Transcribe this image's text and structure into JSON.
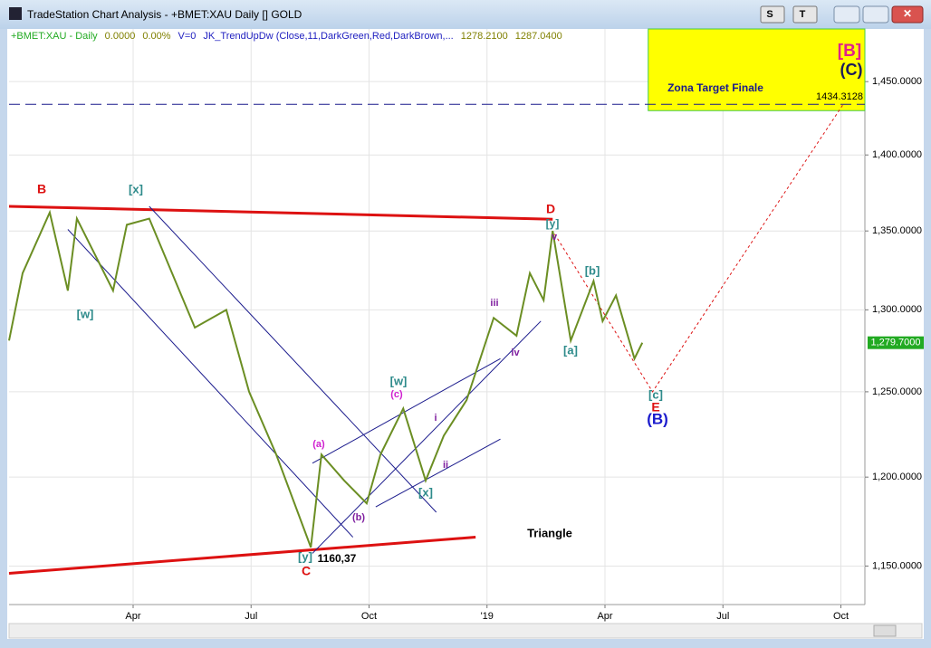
{
  "window_title": "TradeStation Chart Analysis - +BMET:XAU Daily [] GOLD",
  "chart_data": {
    "type": "line",
    "legend_parts": [
      {
        "text": "+BMET:XAU - Daily",
        "color": "#22aa22"
      },
      {
        "text": "0.0000",
        "color": "#808000"
      },
      {
        "text": "0.00%",
        "color": "#808000"
      },
      {
        "text": "V=0",
        "color": "#2020c0"
      },
      {
        "text": "JK_TrendUpDw (Close,11,DarkGreen,Red,DarkBrown,...",
        "color": "#2020c0"
      },
      {
        "text": "1278.2100",
        "color": "#808000"
      },
      {
        "text": "1287.0400",
        "color": "#808000"
      }
    ],
    "log_scale": true,
    "grid": true,
    "xlim": [
      0.845,
      22.61
    ],
    "ylim": [
      1129,
      1487
    ],
    "xticks": [
      {
        "value": 4,
        "label": "Apr"
      },
      {
        "value": 7,
        "label": "Jul"
      },
      {
        "value": 10,
        "label": "Oct"
      },
      {
        "value": 13,
        "label": "'19"
      },
      {
        "value": 16,
        "label": "Apr"
      },
      {
        "value": 19,
        "label": "Jul"
      },
      {
        "value": 22,
        "label": "Oct"
      }
    ],
    "yticks": [
      {
        "value": 1150,
        "label": "1,150.0000"
      },
      {
        "value": 1200,
        "label": "1,200.0000"
      },
      {
        "value": 1250,
        "label": "1,250.0000"
      },
      {
        "value": 1300,
        "label": "1,300.0000"
      },
      {
        "value": 1350,
        "label": "1,350.0000"
      },
      {
        "value": 1400,
        "label": "1,400.0000"
      },
      {
        "value": 1450,
        "label": "1,450.0000"
      }
    ],
    "series": [
      {
        "color": "#6b8e23",
        "x": [
          0.845,
          1.19,
          1.88,
          2.34,
          2.57,
          3.49,
          3.84,
          4.41,
          5.57,
          6.37,
          6.95,
          7.64,
          8.52,
          8.79,
          9.37,
          9.94,
          10.29,
          10.87,
          11.44,
          11.9,
          12.48,
          13.17,
          13.75,
          14.09,
          14.44,
          14.67,
          15.13,
          15.71,
          15.94,
          16.28,
          16.75,
          16.95
        ],
        "values": [
          1281,
          1323,
          1362,
          1312,
          1358,
          1312,
          1354,
          1358,
          1289,
          1300,
          1250,
          1213,
          1160.37,
          1213,
          1198,
          1185,
          1213,
          1240,
          1198,
          1224,
          1245,
          1295,
          1284,
          1323,
          1306,
          1350,
          1281,
          1318,
          1293,
          1309,
          1270,
          1279.7
        ]
      }
    ],
    "last_price": {
      "value": 1279.7,
      "label": "1,279.7000"
    },
    "trendlines": [
      {
        "color": "#dd1111",
        "style": "solid",
        "x": [
          0.845,
          14.67
        ],
        "values": [
          1366,
          1357.6
        ]
      },
      {
        "color": "#dd1111",
        "style": "solid",
        "x": [
          0.845,
          12.71
        ],
        "values": [
          1146,
          1166
        ]
      },
      {
        "color": "#1a1a8c",
        "style": "solid",
        "x": [
          2.34,
          9.59
        ],
        "values": [
          1351,
          1166
        ]
      },
      {
        "color": "#1a1a8c",
        "style": "solid",
        "x": [
          4.41,
          11.71
        ],
        "values": [
          1366,
          1180
        ]
      },
      {
        "color": "#1a1a8c",
        "style": "solid",
        "x": [
          8.56,
          14.37
        ],
        "values": [
          1157,
          1293
        ]
      },
      {
        "color": "#1a1a8c",
        "style": "solid",
        "x": [
          8.56,
          13.34
        ],
        "values": [
          1208,
          1270
        ]
      },
      {
        "color": "#1a1a8c",
        "style": "solid",
        "x": [
          10.17,
          13.34
        ],
        "values": [
          1183,
          1222
        ]
      },
      {
        "color": "#dd1111",
        "style": "dotted",
        "x": [
          14.72,
          17.21,
          22.05
        ],
        "values": [
          1348,
          1250,
          1434
        ]
      }
    ],
    "target": {
      "label": "Zona Target Finale",
      "level": 1434.3128,
      "level_label": "1434.3128",
      "x": [
        17.1,
        22.61
      ],
      "values": [
        1430,
        1487
      ]
    },
    "annotations": [
      {
        "text": "B",
        "color": "#dd1111"
      },
      {
        "text": "[x]",
        "color": "#2e8b8b"
      },
      {
        "text": "[w]",
        "color": "#2e8b8b"
      },
      {
        "text": "C",
        "color": "#dd1111"
      },
      {
        "text": "[y]",
        "color": "#2e8b8b"
      },
      {
        "text": "1160,37",
        "color": "#000000"
      },
      {
        "text": "(a)",
        "color": "#d020d0"
      },
      {
        "text": "(b)",
        "color": "#8020a0"
      },
      {
        "text": "(c)",
        "color": "#d020d0"
      },
      {
        "text": "[w]",
        "color": "#2e8b8b"
      },
      {
        "text": "[x]",
        "color": "#2e8b8b"
      },
      {
        "text": "i",
        "color": "#8020a0"
      },
      {
        "text": "ii",
        "color": "#8020a0"
      },
      {
        "text": "iii",
        "color": "#8020a0"
      },
      {
        "text": "iv",
        "color": "#8020a0"
      },
      {
        "text": "D",
        "color": "#dd1111"
      },
      {
        "text": "[y]",
        "color": "#2e8b8b"
      },
      {
        "text": "v",
        "color": "#8020a0"
      },
      {
        "text": "[a]",
        "color": "#2e8b8b"
      },
      {
        "text": "[b]",
        "color": "#2e8b8b"
      },
      {
        "text": "[c]",
        "color": "#2e8b8b"
      },
      {
        "text": "E",
        "color": "#dd1111"
      },
      {
        "text": "(B)",
        "color": "#1a1acc"
      },
      {
        "text": "[B]",
        "color": "#e0208a"
      },
      {
        "text": "(C)",
        "color": "#1a1a5c"
      },
      {
        "text": "Triangle",
        "color": "#000000"
      }
    ]
  }
}
